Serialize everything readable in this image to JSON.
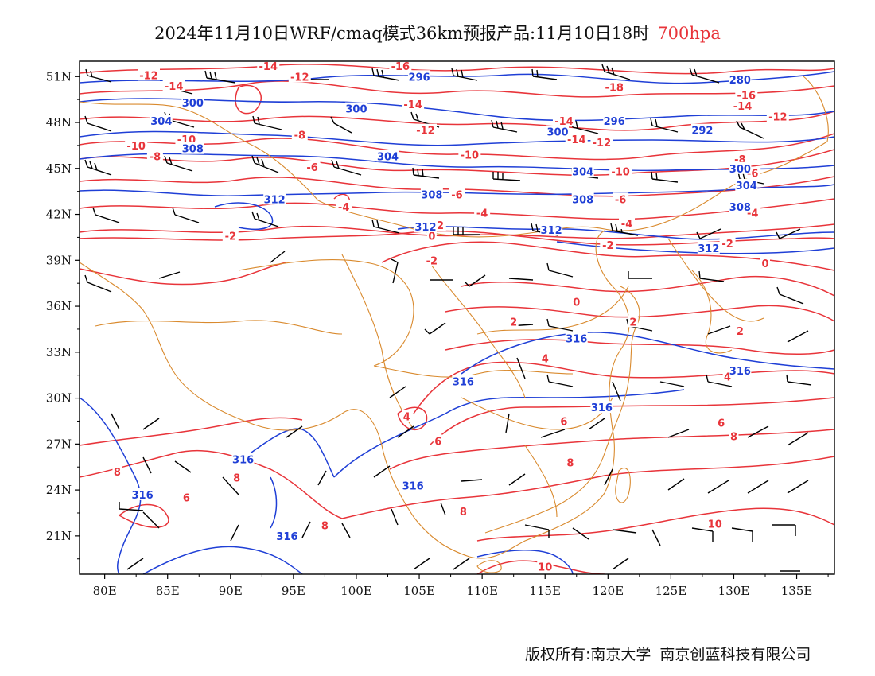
{
  "title": {
    "main": "2024年11月10日WRF/cmaq模式36km预报产品:11月10日18时",
    "level": "700hpa"
  },
  "colors": {
    "temperature": "#e8343a",
    "geopotential": "#1f3fd6",
    "boundary": "#d98a2e",
    "wind": "#000000",
    "level_text": "#e8343a"
  },
  "icons": [
    "wind-barb-icon"
  ],
  "axes": {
    "lon_ticks": [
      "80E",
      "85E",
      "90E",
      "95E",
      "100E",
      "105E",
      "110E",
      "115E",
      "120E",
      "125E",
      "130E",
      "135E"
    ],
    "lat_ticks": [
      "51N",
      "48N",
      "45N",
      "42N",
      "39N",
      "36N",
      "33N",
      "30N",
      "27N",
      "24N",
      "21N"
    ],
    "lon_range": [
      78,
      138
    ],
    "lat_range": [
      18.5,
      52
    ]
  },
  "temperature_isotherms": [
    {
      "value": "-12",
      "lon": 83.5,
      "lat": 51.1
    },
    {
      "value": "-14",
      "lon": 85.5,
      "lat": 50.4
    },
    {
      "value": "-14",
      "lon": 93.0,
      "lat": 51.7
    },
    {
      "value": "-12",
      "lon": 95.5,
      "lat": 51.0
    },
    {
      "value": "-16",
      "lon": 103.5,
      "lat": 51.7
    },
    {
      "value": "-18",
      "lon": 120.5,
      "lat": 50.3
    },
    {
      "value": "-16",
      "lon": 131.0,
      "lat": 49.8
    },
    {
      "value": "-14",
      "lon": 130.7,
      "lat": 49.1
    },
    {
      "value": "-12",
      "lon": 133.5,
      "lat": 48.4
    },
    {
      "value": "-14",
      "lon": 104.5,
      "lat": 49.2
    },
    {
      "value": "-12",
      "lon": 105.5,
      "lat": 47.5
    },
    {
      "value": "-14",
      "lon": 116.5,
      "lat": 48.1
    },
    {
      "value": "-14",
      "lon": 117.5,
      "lat": 46.9
    },
    {
      "value": "-12",
      "lon": 119.5,
      "lat": 46.7
    },
    {
      "value": "-10",
      "lon": 82.5,
      "lat": 46.5
    },
    {
      "value": "-10",
      "lon": 86.5,
      "lat": 46.9
    },
    {
      "value": "-8",
      "lon": 84.0,
      "lat": 45.8
    },
    {
      "value": "-8",
      "lon": 95.5,
      "lat": 47.2
    },
    {
      "value": "-10",
      "lon": 109.0,
      "lat": 45.9
    },
    {
      "value": "-10",
      "lon": 121.0,
      "lat": 44.8
    },
    {
      "value": "-8",
      "lon": 130.5,
      "lat": 45.6
    },
    {
      "value": "-6",
      "lon": 131.5,
      "lat": 44.7
    },
    {
      "value": "-6",
      "lon": 96.5,
      "lat": 45.1
    },
    {
      "value": "-6",
      "lon": 108.0,
      "lat": 43.3
    },
    {
      "value": "-6",
      "lon": 121.0,
      "lat": 43.0
    },
    {
      "value": "-4",
      "lon": 99.0,
      "lat": 42.5
    },
    {
      "value": "-4",
      "lon": 110.0,
      "lat": 42.1
    },
    {
      "value": "-4",
      "lon": 131.5,
      "lat": 42.1
    },
    {
      "value": "-4",
      "lon": 121.5,
      "lat": 41.4
    },
    {
      "value": "-2",
      "lon": 90.0,
      "lat": 40.6
    },
    {
      "value": "-2",
      "lon": 106.5,
      "lat": 41.3
    },
    {
      "value": "0",
      "lon": 106.0,
      "lat": 40.6
    },
    {
      "value": "-2",
      "lon": 120.0,
      "lat": 40.0
    },
    {
      "value": "-2",
      "lon": 129.5,
      "lat": 40.1
    },
    {
      "value": "-2",
      "lon": 106.0,
      "lat": 39.0
    },
    {
      "value": "0",
      "lon": 132.5,
      "lat": 38.8
    },
    {
      "value": "0",
      "lon": 117.5,
      "lat": 36.3
    },
    {
      "value": "2",
      "lon": 112.5,
      "lat": 35.0
    },
    {
      "value": "2",
      "lon": 122.0,
      "lat": 35.0
    },
    {
      "value": "2",
      "lon": 130.5,
      "lat": 34.4
    },
    {
      "value": "4",
      "lon": 115.0,
      "lat": 32.6
    },
    {
      "value": "4",
      "lon": 129.5,
      "lat": 31.4
    },
    {
      "value": "4",
      "lon": 104.0,
      "lat": 28.8
    },
    {
      "value": "6",
      "lon": 116.5,
      "lat": 28.5
    },
    {
      "value": "6",
      "lon": 129.0,
      "lat": 28.4
    },
    {
      "value": "6",
      "lon": 106.5,
      "lat": 27.2
    },
    {
      "value": "8",
      "lon": 130.0,
      "lat": 27.5
    },
    {
      "value": "8",
      "lon": 117.0,
      "lat": 25.8
    },
    {
      "value": "8",
      "lon": 81.0,
      "lat": 25.2
    },
    {
      "value": "8",
      "lon": 90.5,
      "lat": 24.8
    },
    {
      "value": "6",
      "lon": 86.5,
      "lat": 23.5
    },
    {
      "value": "8",
      "lon": 108.5,
      "lat": 22.6
    },
    {
      "value": "8",
      "lon": 97.5,
      "lat": 21.7
    },
    {
      "value": "10",
      "lon": 128.5,
      "lat": 21.8
    },
    {
      "value": "10",
      "lon": 115.0,
      "lat": 19.0
    }
  ],
  "geopotential_contours": [
    {
      "value": "296",
      "lon": 105.0,
      "lat": 51.0
    },
    {
      "value": "280",
      "lon": 130.5,
      "lat": 50.8
    },
    {
      "value": "300",
      "lon": 87.0,
      "lat": 49.3
    },
    {
      "value": "300",
      "lon": 100.0,
      "lat": 48.9
    },
    {
      "value": "304",
      "lon": 84.5,
      "lat": 48.1
    },
    {
      "value": "296",
      "lon": 120.5,
      "lat": 48.1
    },
    {
      "value": "300",
      "lon": 116.0,
      "lat": 47.4
    },
    {
      "value": "292",
      "lon": 127.5,
      "lat": 47.5
    },
    {
      "value": "308",
      "lon": 87.0,
      "lat": 46.3
    },
    {
      "value": "304",
      "lon": 102.5,
      "lat": 45.8
    },
    {
      "value": "304",
      "lon": 118.0,
      "lat": 44.8
    },
    {
      "value": "300",
      "lon": 130.5,
      "lat": 45.0
    },
    {
      "value": "304",
      "lon": 131.0,
      "lat": 43.9
    },
    {
      "value": "308",
      "lon": 106.0,
      "lat": 43.3
    },
    {
      "value": "308",
      "lon": 118.0,
      "lat": 43.0
    },
    {
      "value": "312",
      "lon": 93.5,
      "lat": 43.0
    },
    {
      "value": "308",
      "lon": 130.5,
      "lat": 42.5
    },
    {
      "value": "312",
      "lon": 105.5,
      "lat": 41.2
    },
    {
      "value": "312",
      "lon": 115.5,
      "lat": 41.0
    },
    {
      "value": "312",
      "lon": 128.0,
      "lat": 39.8
    },
    {
      "value": "316",
      "lon": 117.5,
      "lat": 33.9
    },
    {
      "value": "316",
      "lon": 130.5,
      "lat": 31.8
    },
    {
      "value": "316",
      "lon": 108.5,
      "lat": 31.1
    },
    {
      "value": "316",
      "lon": 119.5,
      "lat": 29.4
    },
    {
      "value": "316",
      "lon": 91.0,
      "lat": 26.0
    },
    {
      "value": "316",
      "lon": 83.0,
      "lat": 23.7
    },
    {
      "value": "316",
      "lon": 104.5,
      "lat": 24.3
    },
    {
      "value": "316",
      "lon": 94.5,
      "lat": 21.0
    }
  ],
  "footer": {
    "left": "版权所有:南京大学",
    "right": "南京创蓝科技有限公司"
  }
}
